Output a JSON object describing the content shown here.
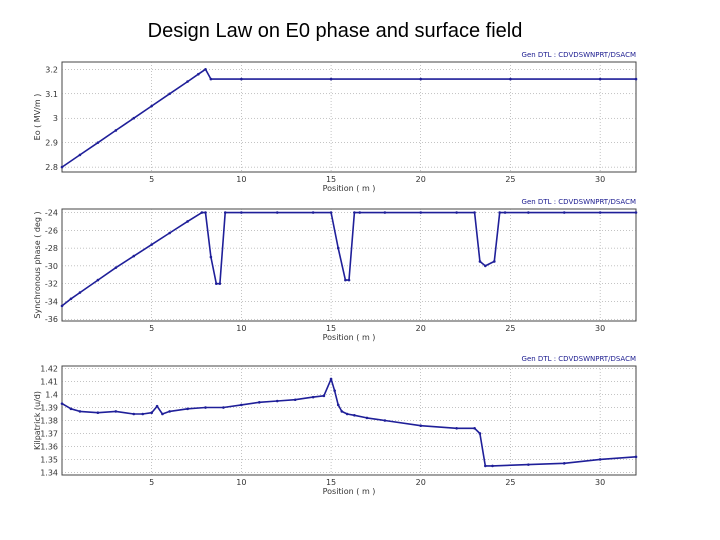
{
  "slide": {
    "title": "Design Law on E0 phase and surface field"
  },
  "colors": {
    "series": "#1f1f99",
    "frame": "#444444",
    "grid": "#888888"
  },
  "chart_data": [
    {
      "type": "line",
      "legend": "Gen DTL : CDVDSWNPRT/DSACM",
      "xlabel": "Position ( m )",
      "ylabel": "Eo ( MV/m )",
      "xlim": [
        0,
        32
      ],
      "ylim": [
        2.78,
        3.23
      ],
      "xticks": [
        5,
        10,
        15,
        20,
        25,
        30
      ],
      "yticks": [
        {
          "v": 3.2,
          "label": "3.2"
        },
        {
          "v": 3.1,
          "label": "3.1"
        },
        {
          "v": 3.0,
          "label": "3"
        },
        {
          "v": 2.9,
          "label": "2.9"
        },
        {
          "v": 2.8,
          "label": "2.8"
        }
      ],
      "x": [
        0,
        1,
        2,
        3,
        4,
        5,
        6,
        7,
        7.6,
        8.0,
        8.3,
        10,
        15,
        20,
        25,
        30,
        32
      ],
      "y": [
        2.8,
        2.85,
        2.9,
        2.95,
        3.0,
        3.05,
        3.1,
        3.15,
        3.18,
        3.2,
        3.16,
        3.16,
        3.16,
        3.16,
        3.16,
        3.16,
        3.16
      ]
    },
    {
      "type": "line",
      "legend": "Gen DTL : CDVDSWNPRT/DSACM",
      "xlabel": "Position ( m )",
      "ylabel": "Synchronous phase ( deg )",
      "xlim": [
        0,
        32
      ],
      "ylim": [
        -36.2,
        -23.6
      ],
      "xticks": [
        5,
        10,
        15,
        20,
        25,
        30
      ],
      "yticks": [
        {
          "v": -24,
          "label": "-24"
        },
        {
          "v": -26,
          "label": "-26"
        },
        {
          "v": -28,
          "label": "-28"
        },
        {
          "v": -30,
          "label": "-30"
        },
        {
          "v": -32,
          "label": "-32"
        },
        {
          "v": -34,
          "label": "-34"
        },
        {
          "v": -36,
          "label": "-36"
        }
      ],
      "x": [
        0,
        0.5,
        1,
        2,
        3,
        4,
        5,
        6,
        7,
        7.8,
        8.0,
        8.3,
        8.6,
        8.8,
        9.1,
        10,
        12,
        14,
        15.0,
        15.4,
        15.8,
        16.0,
        16.3,
        16.6,
        18,
        20,
        22,
        23.0,
        23.3,
        23.6,
        24.1,
        24.4,
        24.7,
        26,
        28,
        30,
        32
      ],
      "y": [
        -34.5,
        -33.7,
        -33.0,
        -31.6,
        -30.2,
        -28.9,
        -27.6,
        -26.3,
        -25.0,
        -24.0,
        -24.0,
        -29.0,
        -32.0,
        -32.0,
        -24.0,
        -24.0,
        -24.0,
        -24.0,
        -24.0,
        -28.0,
        -31.6,
        -31.6,
        -24.0,
        -24.0,
        -24.0,
        -24.0,
        -24.0,
        -24.0,
        -29.5,
        -30.0,
        -29.5,
        -24.0,
        -24.0,
        -24.0,
        -24.0,
        -24.0,
        -24.0
      ]
    },
    {
      "type": "line",
      "legend": "Gen DTL : CDVDSWNPRT/DSACM",
      "xlabel": "Position ( m )",
      "ylabel": "Kilpatrick (u/d)",
      "xlim": [
        0,
        32
      ],
      "ylim": [
        1.338,
        1.422
      ],
      "xticks": [
        5,
        10,
        15,
        20,
        25,
        30
      ],
      "yticks": [
        {
          "v": 1.42,
          "label": "1.42"
        },
        {
          "v": 1.41,
          "label": "1.41"
        },
        {
          "v": 1.4,
          "label": "1.4"
        },
        {
          "v": 1.39,
          "label": "1.39"
        },
        {
          "v": 1.38,
          "label": "1.38"
        },
        {
          "v": 1.37,
          "label": "1.37"
        },
        {
          "v": 1.36,
          "label": "1.36"
        },
        {
          "v": 1.35,
          "label": "1.35"
        },
        {
          "v": 1.34,
          "label": "1.34"
        }
      ],
      "x": [
        0,
        0.5,
        1,
        2,
        3,
        4,
        4.5,
        5,
        5.3,
        5.6,
        6,
        7,
        8,
        9,
        10,
        11,
        12,
        13,
        14,
        14.6,
        15,
        15.2,
        15.4,
        15.6,
        15.9,
        16.3,
        17,
        18,
        20,
        22,
        23,
        23.3,
        23.6,
        24,
        26,
        28,
        30,
        32
      ],
      "y": [
        1.393,
        1.389,
        1.387,
        1.386,
        1.387,
        1.385,
        1.385,
        1.386,
        1.391,
        1.385,
        1.387,
        1.389,
        1.39,
        1.39,
        1.392,
        1.394,
        1.395,
        1.396,
        1.398,
        1.399,
        1.412,
        1.403,
        1.392,
        1.387,
        1.385,
        1.384,
        1.382,
        1.38,
        1.376,
        1.374,
        1.374,
        1.37,
        1.345,
        1.345,
        1.346,
        1.347,
        1.35,
        1.352
      ]
    }
  ]
}
